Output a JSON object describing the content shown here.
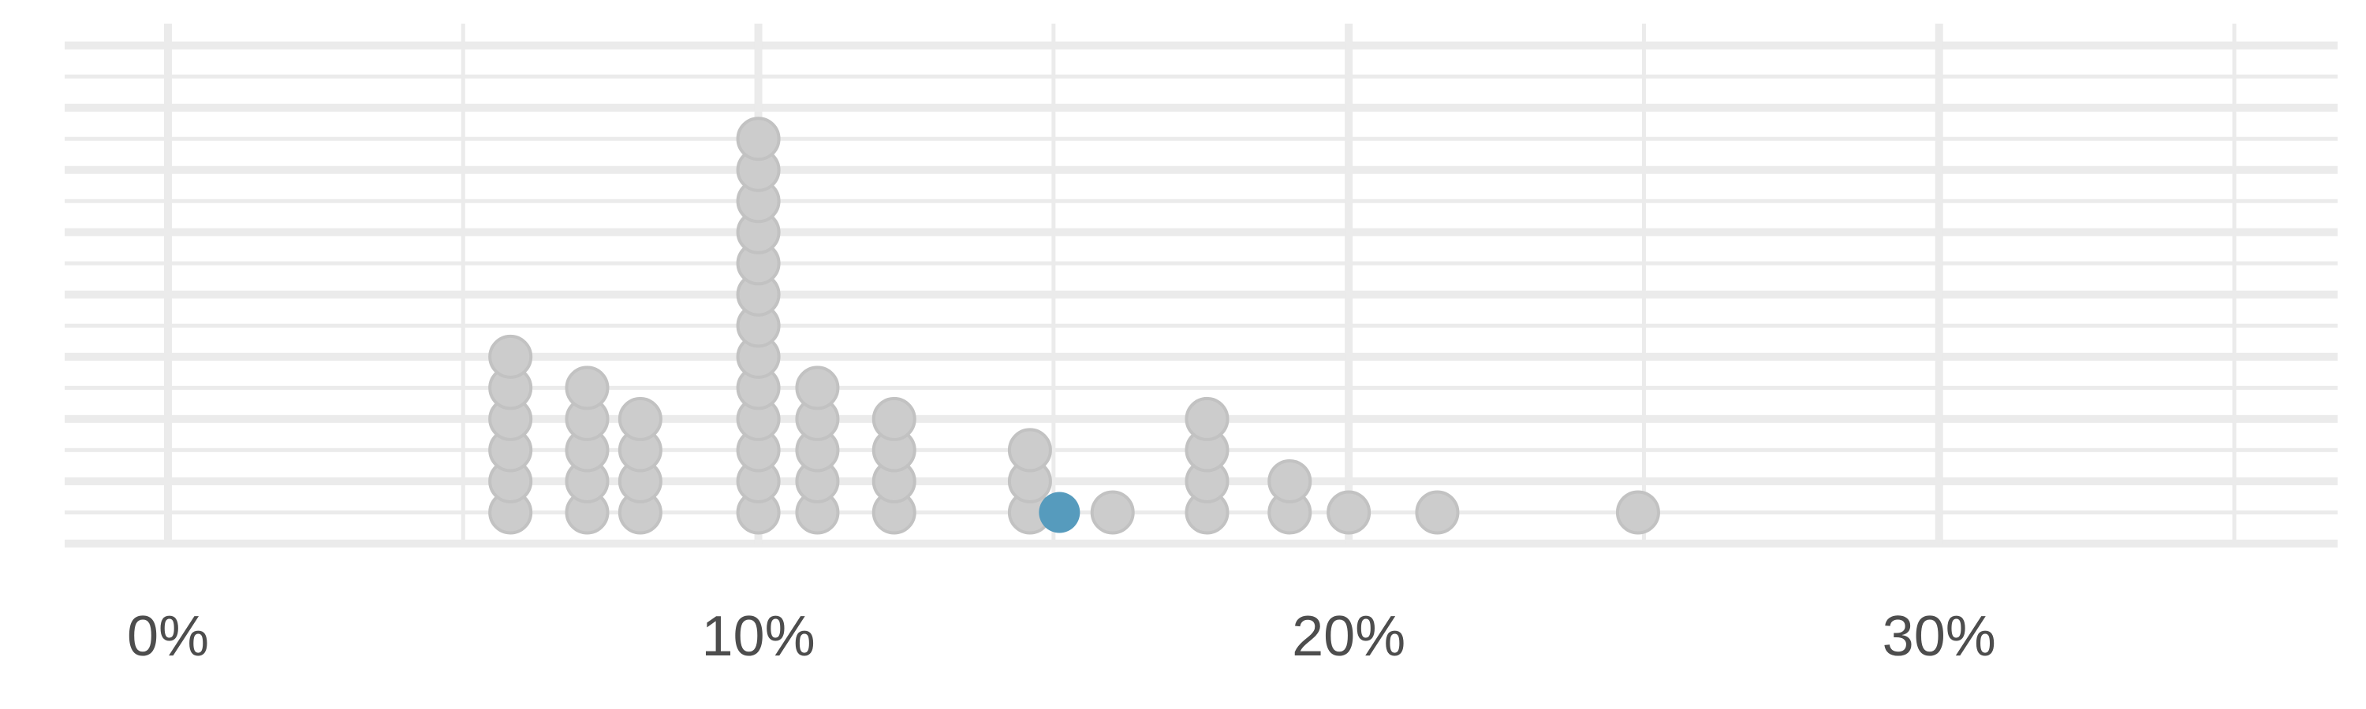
{
  "chart_data": {
    "type": "dot-plot",
    "x_axis": {
      "range": [
        -1.75,
        36.75
      ],
      "major_ticks": [
        0,
        10,
        20,
        30
      ],
      "minor_ticks": [
        5,
        15,
        25,
        35
      ],
      "tick_labels": [
        "0%",
        "10%",
        "20%",
        "30%"
      ]
    },
    "y_axis": {
      "range": [
        0,
        8.35
      ],
      "tick_labels_shown": false
    },
    "grid": true,
    "stacks": [
      {
        "x": 5.8,
        "count": 6
      },
      {
        "x": 7.1,
        "count": 5
      },
      {
        "x": 8.0,
        "count": 4
      },
      {
        "x": 10.0,
        "count": 13
      },
      {
        "x": 11.0,
        "count": 5
      },
      {
        "x": 12.3,
        "count": 4
      },
      {
        "x": 14.6,
        "count": 3
      },
      {
        "x": 16.0,
        "count": 1
      },
      {
        "x": 17.6,
        "count": 4
      },
      {
        "x": 19.0,
        "count": 2
      },
      {
        "x": 20.0,
        "count": 1
      },
      {
        "x": 21.5,
        "count": 1
      },
      {
        "x": 24.9,
        "count": 1
      }
    ],
    "highlight": {
      "x": 15.1,
      "level": 1
    },
    "colors": {
      "dot_fill": "#cccccc",
      "dot_stroke": "#c2c2c2",
      "highlight": "#569bbd",
      "grid": "#ebebeb",
      "tick_label": "#4d4d4d"
    }
  }
}
